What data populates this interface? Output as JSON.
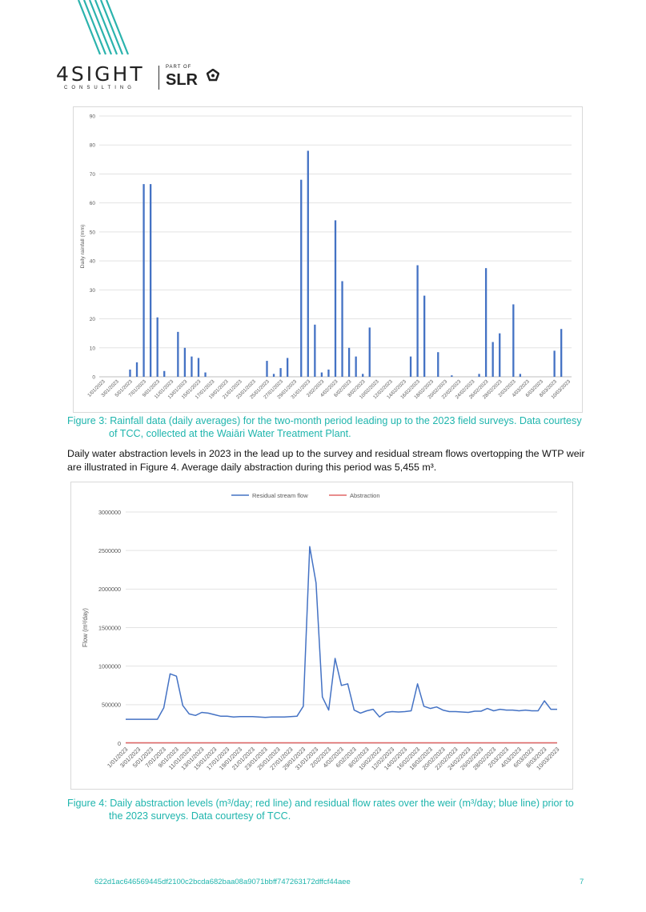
{
  "header": {
    "logo_text": "4SIGHT",
    "logo_sub": "CONSULTING",
    "part_of": "PART OF",
    "slr": "SLR",
    "accent": "#2bb3ad"
  },
  "figure3": {
    "caption_line1": "Figure 3: Rainfall data (daily averages) for the two-month period leading up to the 2023 field surveys. Data courtesy",
    "caption_line2": "of TCC, collected at the Waiāri Water Treatment Plant."
  },
  "paragraph": {
    "line1": "Daily water abstraction levels in 2023 in the lead up to the survey and residual stream flows overtopping the WTP weir",
    "line2": "are illustrated in Figure 4. Average daily abstraction during this period was 5,455 m³."
  },
  "figure4": {
    "caption_line1": "Figure 4: Daily abstraction levels (m³/day; red line) and residual flow rates over the weir (m³/day; blue line) prior to",
    "caption_line2": "the 2023 surveys. Data courtesy of TCC."
  },
  "footer": {
    "hash": "622d1ac646569445df2100c2bcda682baa08a9071bbff747263172dffcf44aee",
    "page": "7"
  },
  "chart_data": [
    {
      "type": "bar",
      "ylabel": "Daily rainfall (mm)",
      "ylim": [
        0,
        90
      ],
      "yticks": [
        0,
        10,
        20,
        30,
        40,
        50,
        60,
        70,
        80,
        90
      ],
      "grid": true,
      "color": "#4472c4",
      "x_tick_labels": [
        "1/01/2023",
        "3/01/2023",
        "5/01/2023",
        "7/01/2023",
        "9/01/2023",
        "11/01/2023",
        "13/01/2023",
        "15/01/2023",
        "17/01/2023",
        "19/01/2023",
        "21/01/2023",
        "23/01/2023",
        "25/01/2023",
        "27/01/2023",
        "29/01/2023",
        "31/01/2023",
        "2/02/2023",
        "4/02/2023",
        "6/02/2023",
        "8/02/2023",
        "10/02/2023",
        "12/02/2023",
        "14/02/2023",
        "16/02/2023",
        "18/02/2023",
        "20/02/2023",
        "22/02/2023",
        "24/02/2023",
        "26/02/2023",
        "28/02/2023",
        "2/03/2023",
        "4/03/2023",
        "6/03/2023",
        "8/03/2023",
        "10/03/2023"
      ],
      "x": [
        "1/01/2023",
        "2/01/2023",
        "3/01/2023",
        "4/01/2023",
        "5/01/2023",
        "6/01/2023",
        "7/01/2023",
        "8/01/2023",
        "9/01/2023",
        "10/01/2023",
        "11/01/2023",
        "12/01/2023",
        "13/01/2023",
        "14/01/2023",
        "15/01/2023",
        "16/01/2023",
        "17/01/2023",
        "18/01/2023",
        "19/01/2023",
        "20/01/2023",
        "21/01/2023",
        "22/01/2023",
        "23/01/2023",
        "24/01/2023",
        "25/01/2023",
        "26/01/2023",
        "27/01/2023",
        "28/01/2023",
        "29/01/2023",
        "30/01/2023",
        "31/01/2023",
        "1/02/2023",
        "2/02/2023",
        "3/02/2023",
        "4/02/2023",
        "5/02/2023",
        "6/02/2023",
        "7/02/2023",
        "8/02/2023",
        "9/02/2023",
        "10/02/2023",
        "11/02/2023",
        "12/02/2023",
        "13/02/2023",
        "14/02/2023",
        "15/02/2023",
        "16/02/2023",
        "17/02/2023",
        "18/02/2023",
        "19/02/2023",
        "20/02/2023",
        "21/02/2023",
        "22/02/2023",
        "23/02/2023",
        "24/02/2023",
        "25/02/2023",
        "26/02/2023",
        "27/02/2023",
        "28/02/2023",
        "1/03/2023",
        "2/03/2023",
        "3/03/2023",
        "4/03/2023",
        "5/03/2023",
        "6/03/2023",
        "7/03/2023",
        "8/03/2023",
        "9/03/2023",
        "10/03/2023"
      ],
      "values": [
        0,
        0,
        0,
        0,
        2.5,
        5,
        66.5,
        66.5,
        20.5,
        2,
        0,
        15.5,
        10,
        7,
        6.5,
        1.5,
        0,
        0,
        0,
        0,
        0,
        0,
        0,
        0,
        5.5,
        1,
        3,
        6.5,
        0,
        68,
        78,
        18,
        1.5,
        2.5,
        54,
        33,
        10,
        7,
        1,
        17,
        0,
        0,
        0,
        0,
        0,
        7,
        38.5,
        28,
        0,
        8.5,
        0,
        0.5,
        0,
        0,
        0,
        1,
        37.5,
        12,
        15,
        0,
        25,
        1,
        0,
        0,
        0,
        0,
        9,
        16.5,
        0
      ]
    },
    {
      "type": "line",
      "ylabel": "Flow (m³/day)",
      "ylim": [
        0,
        3000000
      ],
      "yticks": [
        0,
        500000,
        1000000,
        1500000,
        2000000,
        2500000,
        3000000
      ],
      "grid": true,
      "legend": "top",
      "x_tick_labels": [
        "1/01/2023",
        "3/01/2023",
        "5/01/2023",
        "7/01/2023",
        "9/01/2023",
        "11/01/2023",
        "13/01/2023",
        "15/01/2023",
        "17/01/2023",
        "19/01/2023",
        "21/01/2023",
        "23/01/2023",
        "25/01/2023",
        "27/01/2023",
        "29/01/2023",
        "31/01/2023",
        "2/02/2023",
        "4/02/2023",
        "6/02/2023",
        "8/02/2023",
        "10/02/2023",
        "12/02/2023",
        "14/02/2023",
        "16/02/2023",
        "18/02/2023",
        "20/02/2023",
        "22/02/2023",
        "24/02/2023",
        "26/02/2023",
        "28/02/2023",
        "2/03/2023",
        "4/03/2023",
        "6/03/2023",
        "8/03/2023",
        "10/03/2023"
      ],
      "series": [
        {
          "name": "Residual stream flow",
          "color": "#4472c4",
          "values": [
            310000,
            310000,
            310000,
            310000,
            310000,
            310000,
            460000,
            900000,
            870000,
            490000,
            380000,
            360000,
            400000,
            390000,
            370000,
            350000,
            350000,
            340000,
            345000,
            345000,
            345000,
            340000,
            335000,
            340000,
            340000,
            340000,
            345000,
            350000,
            480000,
            2550000,
            2080000,
            600000,
            430000,
            1100000,
            750000,
            770000,
            430000,
            390000,
            420000,
            440000,
            340000,
            400000,
            410000,
            405000,
            410000,
            420000,
            770000,
            480000,
            450000,
            470000,
            430000,
            410000,
            410000,
            405000,
            400000,
            415000,
            415000,
            450000,
            420000,
            440000,
            430000,
            430000,
            420000,
            430000,
            420000,
            420000,
            550000,
            440000,
            440000
          ]
        },
        {
          "name": "Abstraction",
          "color": "#e06666",
          "values": [
            5500,
            5500,
            5400,
            5500,
            5600,
            5500,
            5400,
            5500,
            5500,
            5400,
            5500,
            5500,
            5500,
            5400,
            5500,
            5600,
            5500,
            5400,
            5500,
            5500,
            5500,
            5400,
            5500,
            5600,
            5500,
            5500,
            5400,
            5500,
            5500,
            5400,
            5500,
            5500,
            5600,
            5500,
            5400,
            5500,
            5500,
            5400,
            5500,
            5500,
            5400,
            5500,
            5600,
            5500,
            5400,
            5500,
            5500,
            5500,
            5400,
            5500,
            5500,
            5400,
            5500,
            5600,
            5500,
            5400,
            5500,
            5500,
            5400,
            5500,
            5500,
            5500,
            5400,
            5500,
            5500,
            5400,
            5500,
            5500,
            5500
          ]
        }
      ]
    }
  ]
}
